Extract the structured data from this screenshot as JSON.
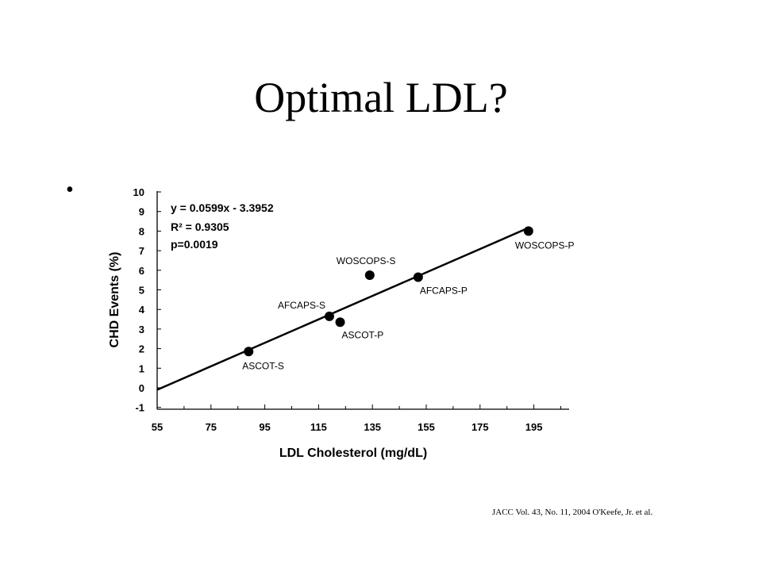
{
  "slide": {
    "title": "Optimal LDL?",
    "bullet": "•",
    "citation": "JACC Vol. 43, No. 11, 2004 O'Keefe, Jr. et al."
  },
  "chart_data": {
    "type": "scatter",
    "xlabel": "LDL Cholesterol (mg/dL)",
    "ylabel": "CHD Events (%)",
    "xlim": [
      55,
      215
    ],
    "ylim": [
      -1,
      10
    ],
    "x_ticks": [
      55,
      75,
      95,
      115,
      135,
      155,
      175,
      195
    ],
    "y_ticks": [
      -1,
      0,
      1,
      2,
      3,
      4,
      5,
      6,
      7,
      8,
      9,
      10
    ],
    "annotations": [
      "y = 0.0599x - 3.3952",
      "R² = 0.9305",
      "p=0.0019"
    ],
    "points": [
      {
        "label": "ASCOT-S",
        "x": 89,
        "y": 1.85
      },
      {
        "label": "AFCAPS-S",
        "x": 119,
        "y": 3.65
      },
      {
        "label": "ASCOT-P",
        "x": 123,
        "y": 3.35
      },
      {
        "label": "WOSCOPS-S",
        "x": 134,
        "y": 5.75
      },
      {
        "label": "AFCAPS-P",
        "x": 152,
        "y": 5.65
      },
      {
        "label": "WOSCOPS-P",
        "x": 193,
        "y": 8.0
      }
    ],
    "trendline": {
      "slope": 0.0599,
      "intercept": -3.3952,
      "x_range": [
        55,
        193
      ]
    },
    "grid": false,
    "legend": "none"
  }
}
